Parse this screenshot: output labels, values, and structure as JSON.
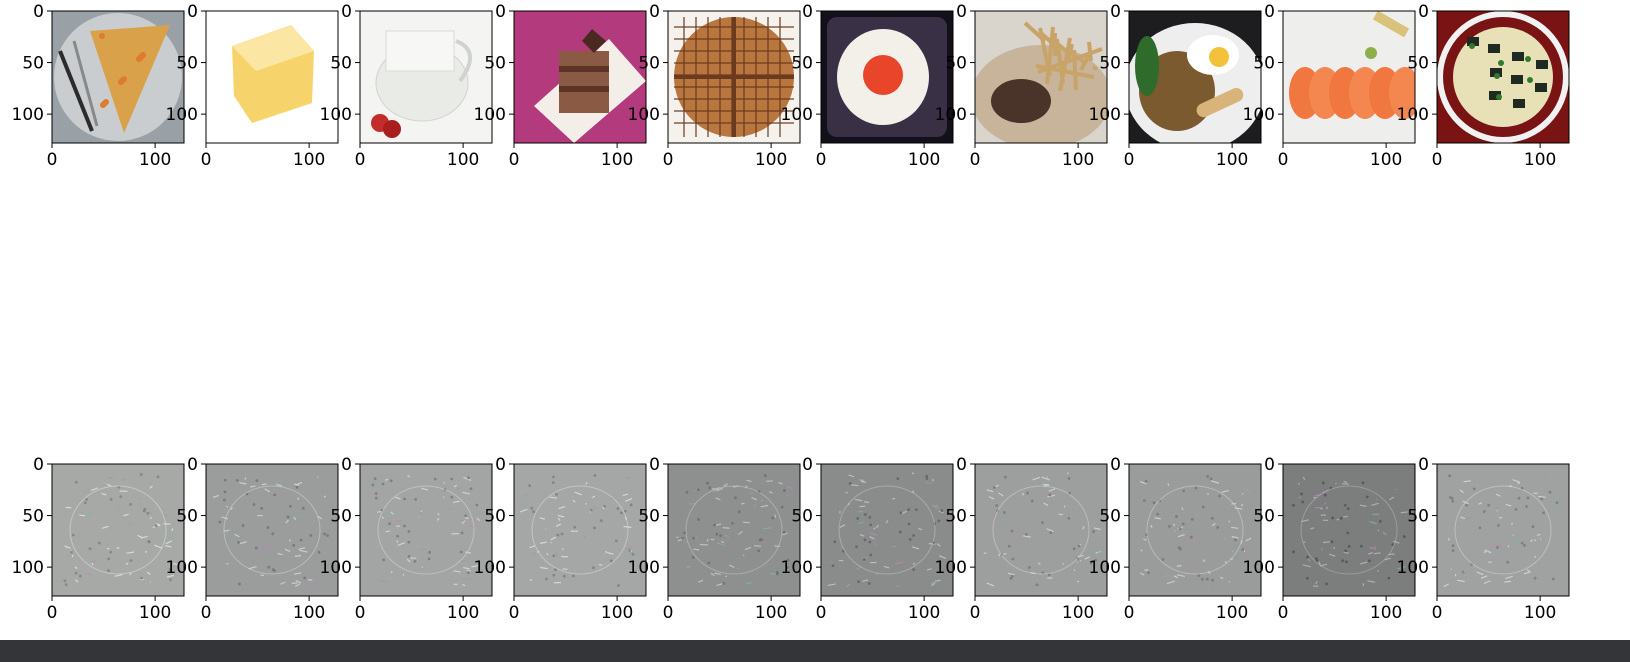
{
  "chart_data": {
    "type": "image-grid",
    "rows": 2,
    "cols": 10,
    "x_ticks": [
      "0",
      "100"
    ],
    "y_ticks": [
      "0",
      "50",
      "100"
    ],
    "x_tick_values": [
      0,
      100
    ],
    "y_tick_values": [
      0,
      50,
      100
    ],
    "xlim": [
      0,
      128
    ],
    "ylim": [
      128,
      0
    ],
    "panels": [
      {
        "row": 0,
        "col": 0,
        "content": "pizza-slice",
        "palette": {
          "bg": "#9aa1a6",
          "fg": "#d9a24a",
          "accent": "#e07a2c"
        }
      },
      {
        "row": 0,
        "col": 1,
        "content": "butter",
        "palette": {
          "bg": "#ffffff",
          "fg": "#f6d36b",
          "accent": "#e6b94a"
        }
      },
      {
        "row": 0,
        "col": 2,
        "content": "milk-jug",
        "palette": {
          "bg": "#f4f4f2",
          "fg": "#e9ebe6",
          "accent": "#c42b2b"
        }
      },
      {
        "row": 0,
        "col": 3,
        "content": "chocolate-cake",
        "palette": {
          "bg": "#b23a7d",
          "fg": "#8a5a45",
          "accent": "#f3eee8"
        }
      },
      {
        "row": 0,
        "col": 4,
        "content": "waffle",
        "palette": {
          "bg": "#f5f2ee",
          "fg": "#b9773f",
          "accent": "#6b3b1f"
        }
      },
      {
        "row": 0,
        "col": 5,
        "content": "fried-egg",
        "palette": {
          "bg": "#121018",
          "fg": "#f3f0ea",
          "accent": "#e8452b"
        }
      },
      {
        "row": 0,
        "col": 6,
        "content": "steak-fries",
        "palette": {
          "bg": "#d9d4cc",
          "fg": "#4a3328",
          "accent": "#c9a469"
        }
      },
      {
        "row": 0,
        "col": 7,
        "content": "fried-noodles",
        "palette": {
          "bg": "#1d1d1f",
          "fg": "#7a5a2e",
          "accent": "#f2c33a"
        }
      },
      {
        "row": 0,
        "col": 8,
        "content": "sashimi",
        "palette": {
          "bg": "#eeeeec",
          "fg": "#f0773f",
          "accent": "#8bb04a"
        }
      },
      {
        "row": 0,
        "col": 9,
        "content": "miso-soup",
        "palette": {
          "bg": "#7a1414",
          "fg": "#e8e1b8",
          "accent": "#2f7a2f"
        }
      },
      {
        "row": 1,
        "col": 0,
        "content": "saliency-pizza",
        "palette": {
          "bg": "#a7a9a7",
          "fg": "#7d807e",
          "accent": "#e3e5e3"
        }
      },
      {
        "row": 1,
        "col": 1,
        "content": "saliency-butter",
        "palette": {
          "bg": "#9b9d9c",
          "fg": "#6f7371",
          "accent": "#d7dad8"
        }
      },
      {
        "row": 1,
        "col": 2,
        "content": "saliency-milk",
        "palette": {
          "bg": "#a3a5a4",
          "fg": "#757877",
          "accent": "#dcdedd"
        }
      },
      {
        "row": 1,
        "col": 3,
        "content": "saliency-cake",
        "palette": {
          "bg": "#a5a7a6",
          "fg": "#7a7d7c",
          "accent": "#e0e2e1"
        }
      },
      {
        "row": 1,
        "col": 4,
        "content": "saliency-waffle",
        "palette": {
          "bg": "#8e9090",
          "fg": "#6a6d6c",
          "accent": "#c9cccb"
        }
      },
      {
        "row": 1,
        "col": 5,
        "content": "saliency-egg",
        "palette": {
          "bg": "#8a8c8b",
          "fg": "#5f6261",
          "accent": "#c7cac9"
        }
      },
      {
        "row": 1,
        "col": 6,
        "content": "saliency-steak",
        "palette": {
          "bg": "#9d9f9e",
          "fg": "#747776",
          "accent": "#d8dad9"
        }
      },
      {
        "row": 1,
        "col": 7,
        "content": "saliency-noodles",
        "palette": {
          "bg": "#9a9c9b",
          "fg": "#727574",
          "accent": "#d6d8d7"
        }
      },
      {
        "row": 1,
        "col": 8,
        "content": "saliency-sashimi",
        "palette": {
          "bg": "#7c7e7d",
          "fg": "#505352",
          "accent": "#b9bcbb"
        }
      },
      {
        "row": 1,
        "col": 9,
        "content": "saliency-miso",
        "palette": {
          "bg": "#a0a2a1",
          "fg": "#767978",
          "accent": "#dadcdb"
        }
      }
    ]
  },
  "colors": {
    "figure_background": "#ffffff",
    "axes_edge": "#000000",
    "bottom_bar": "#333538"
  }
}
